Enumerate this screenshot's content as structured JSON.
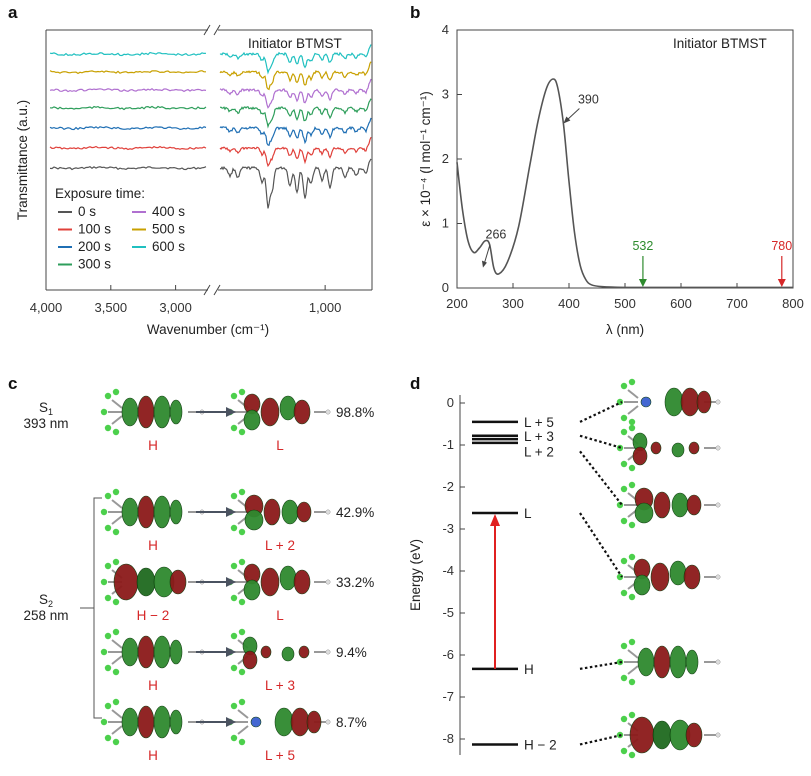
{
  "panels": {
    "a": "a",
    "b": "b",
    "c": "c",
    "d": "d"
  },
  "chart_data": [
    {
      "panel": "a",
      "type": "line",
      "annotation": "Initiator BTMST",
      "xlabel": "Wavenumber (cm⁻¹)",
      "ylabel": "Transmittance (a.u.)",
      "x_ticks": [
        "4,000",
        "3,500",
        "3,000",
        "1,000"
      ],
      "xlim": [
        4000,
        650
      ],
      "x_axis_break": [
        2750,
        1800
      ],
      "legend_title": "Exposure time:",
      "series": [
        {
          "name": "0 s",
          "color": "#555555"
        },
        {
          "name": "100 s",
          "color": "#e0403a"
        },
        {
          "name": "200 s",
          "color": "#1f6fb4"
        },
        {
          "name": "300 s",
          "color": "#2e9e5b"
        },
        {
          "name": "400 s",
          "color": "#b070d0"
        },
        {
          "name": "500 s",
          "color": "#c8a000"
        },
        {
          "name": "600 s",
          "color": "#20c0c0"
        }
      ]
    },
    {
      "panel": "b",
      "type": "line",
      "annotation": "Initiator BTMST",
      "xlabel": "λ (nm)",
      "ylabel": "ε × 10⁻⁴ (l mol⁻¹ cm⁻¹)",
      "xlim": [
        200,
        800
      ],
      "ylim": [
        0,
        4
      ],
      "x_ticks": [
        "200",
        "300",
        "400",
        "500",
        "600",
        "700",
        "800"
      ],
      "y_ticks": [
        "0",
        "1",
        "2",
        "3",
        "4"
      ],
      "x": [
        200,
        210,
        220,
        230,
        240,
        250,
        258,
        266,
        275,
        290,
        310,
        330,
        345,
        360,
        372,
        380,
        390,
        400,
        410,
        420,
        430,
        440,
        460,
        500,
        600,
        700,
        800
      ],
      "y": [
        1.95,
        1.2,
        0.72,
        0.55,
        0.62,
        0.73,
        0.68,
        0.3,
        0.22,
        0.4,
        0.95,
        1.9,
        2.6,
        3.1,
        3.24,
        3.1,
        2.55,
        1.65,
        0.85,
        0.35,
        0.13,
        0.05,
        0.02,
        0.01,
        0.01,
        0.01,
        0.01
      ],
      "annotations": [
        {
          "label": "266",
          "x": 266,
          "y": 0.3
        },
        {
          "label": "390",
          "x": 390,
          "y": 2.55
        },
        {
          "label": "532",
          "x": 532,
          "y": 0,
          "color": "#2e8b2e"
        },
        {
          "label": "780",
          "x": 780,
          "y": 0,
          "color": "#d62728"
        }
      ]
    },
    {
      "panel": "d",
      "type": "diagram",
      "ylabel": "Energy (eV)",
      "ylim": [
        -8.4,
        0
      ],
      "y_ticks": [
        "0",
        "-1",
        "-2",
        "-3",
        "-4",
        "-5",
        "-6",
        "-7",
        "-8"
      ],
      "levels": [
        {
          "label": "L + 5",
          "energy": -0.45
        },
        {
          "label": "L + 3",
          "energy": -0.78
        },
        {
          "label": "",
          "energy": -0.86
        },
        {
          "label": "L + 2",
          "energy": -0.95
        },
        {
          "label": "L",
          "energy": -2.62
        },
        {
          "label": "H",
          "energy": -6.33
        },
        {
          "label": "H − 2",
          "energy": -8.13
        }
      ]
    }
  ],
  "panel_c": {
    "states": [
      {
        "state": "S",
        "sub": "1",
        "wavelength": "393 nm"
      },
      {
        "state": "S",
        "sub": "2",
        "wavelength": "258 nm"
      }
    ],
    "transitions": [
      {
        "from": "H",
        "to": "L",
        "pct": "98.8%"
      },
      {
        "from": "H",
        "to": "L + 2",
        "pct": "42.9%"
      },
      {
        "from": "H − 2",
        "to": "L",
        "pct": "33.2%"
      },
      {
        "from": "H",
        "to": "L + 3",
        "pct": "9.4%"
      },
      {
        "from": "H",
        "to": "L + 5",
        "pct": "8.7%"
      }
    ]
  }
}
